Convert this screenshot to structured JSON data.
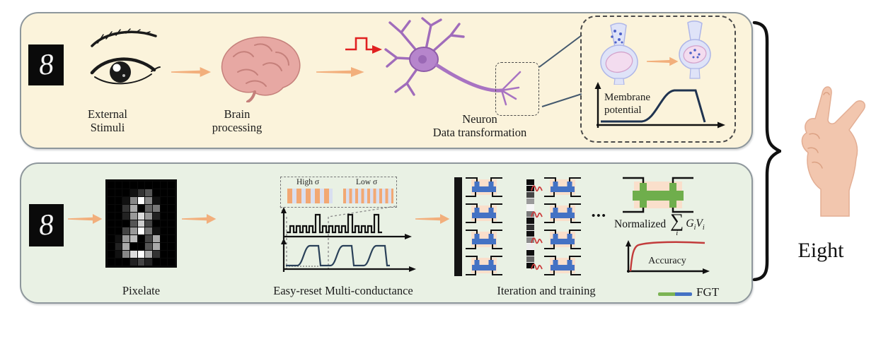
{
  "top_panel": {
    "digit": "8",
    "stage1_line1": "External",
    "stage1_line2": "Stimuli",
    "stage2_line1": "Brain",
    "stage2_line2": "processing",
    "stage3_line1": "Neuron",
    "stage3_line2": "Data transformation",
    "inset": {
      "graph_line1": "Membrane",
      "graph_line2": "potential"
    }
  },
  "bottom_panel": {
    "digit": "8",
    "pixelate_label": "Pixelate",
    "high_sigma_label": "High σ",
    "low_sigma_label": "Low σ",
    "conductance_label": "Easy-reset Multi-conductance",
    "iteration_label": "Iteration and training",
    "dots": "•••",
    "formula": {
      "prefix": "Normalized",
      "sigma": "∑",
      "sigma_sub": "i",
      "g": "G",
      "g_sub": "i",
      "v": "V",
      "v_sub": "i"
    },
    "accuracy_label": "Accuracy",
    "legend_label": "FGT",
    "pixel_grid": [
      "000000000",
      "000135000",
      "0018f8100",
      "003a06700",
      "0029d9200",
      "0005c4000",
      "0049f7100",
      "019b04a00",
      "02a005a00",
      "018dfa300",
      "000242000"
    ],
    "segment_values": [
      "#0d0d0d",
      "#0d0d0d",
      "#454545",
      "#9a9a9a",
      "#f6f6f6",
      "#7a7a7a",
      "#101010",
      "#333333",
      "#101010",
      "#8c8c8c",
      "#ececec",
      "#101010",
      "#666666",
      "#0d0d0d"
    ]
  },
  "result": {
    "word": "Eight"
  },
  "colors": {
    "panel_top_bg": "#fbf3db",
    "panel_bottom_bg": "#e9f1e4",
    "flow_arrow": "#f2af7c",
    "pulse_red": "#e02020",
    "curve_navy": "#24415e",
    "transistor_blue": "#4472c4",
    "fgt_green": "#6fae4c",
    "accuracy_red": "#c23b3b",
    "stripe_orange": "#f2a873",
    "stripe_blue": "#d9dff0"
  }
}
